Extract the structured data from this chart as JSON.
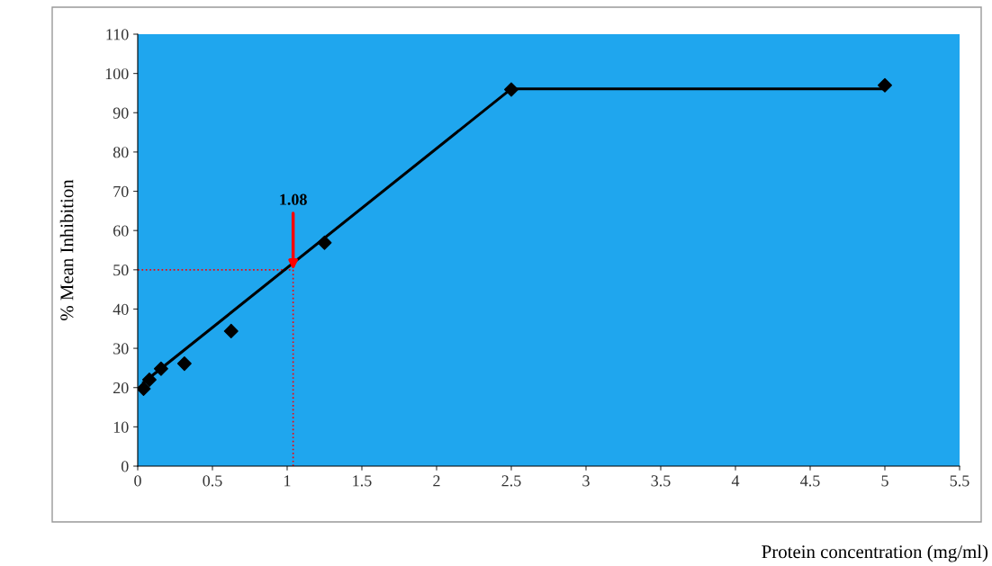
{
  "chart_data": {
    "type": "scatter",
    "xlabel": "Protein concentration (mg/ml)",
    "ylabel": "% Mean Inhibition",
    "x": [
      0.039,
      0.078,
      0.156,
      0.3125,
      0.625,
      1.25,
      2.5,
      5
    ],
    "series": [
      {
        "color": "#000000",
        "values": [
          19.7,
          22,
          24.8,
          26.1,
          34.4,
          56.9,
          95.9,
          97.0
        ],
        "marker": "diamond"
      },
      {
        "type": "line",
        "color": "#000000",
        "x": [
          0.039,
          2.5,
          5
        ],
        "values": [
          21.3,
          96.1,
          96.1
        ],
        "marker": "none",
        "line_style": "solid"
      }
    ],
    "xlim": [
      0,
      5.5
    ],
    "xticks": [
      0,
      0.5,
      1,
      1.5,
      2,
      2.5,
      3,
      3.5,
      4,
      4.5,
      5,
      5.5
    ],
    "ylim": [
      0,
      110
    ],
    "yticks": [
      0,
      10,
      20,
      30,
      40,
      50,
      60,
      70,
      80,
      90,
      100,
      110
    ],
    "ref_lines": [
      {
        "axis": "x",
        "value": 1.04,
        "color": "#ff0000",
        "line_style": "dotted"
      },
      {
        "axis": "y",
        "value": 50,
        "color": "#ff0000",
        "line_style": "dotted"
      }
    ],
    "annotations": [
      {
        "text": "1.08",
        "x": 1.04,
        "y": 50
      }
    ],
    "grid": false,
    "legend": false
  }
}
